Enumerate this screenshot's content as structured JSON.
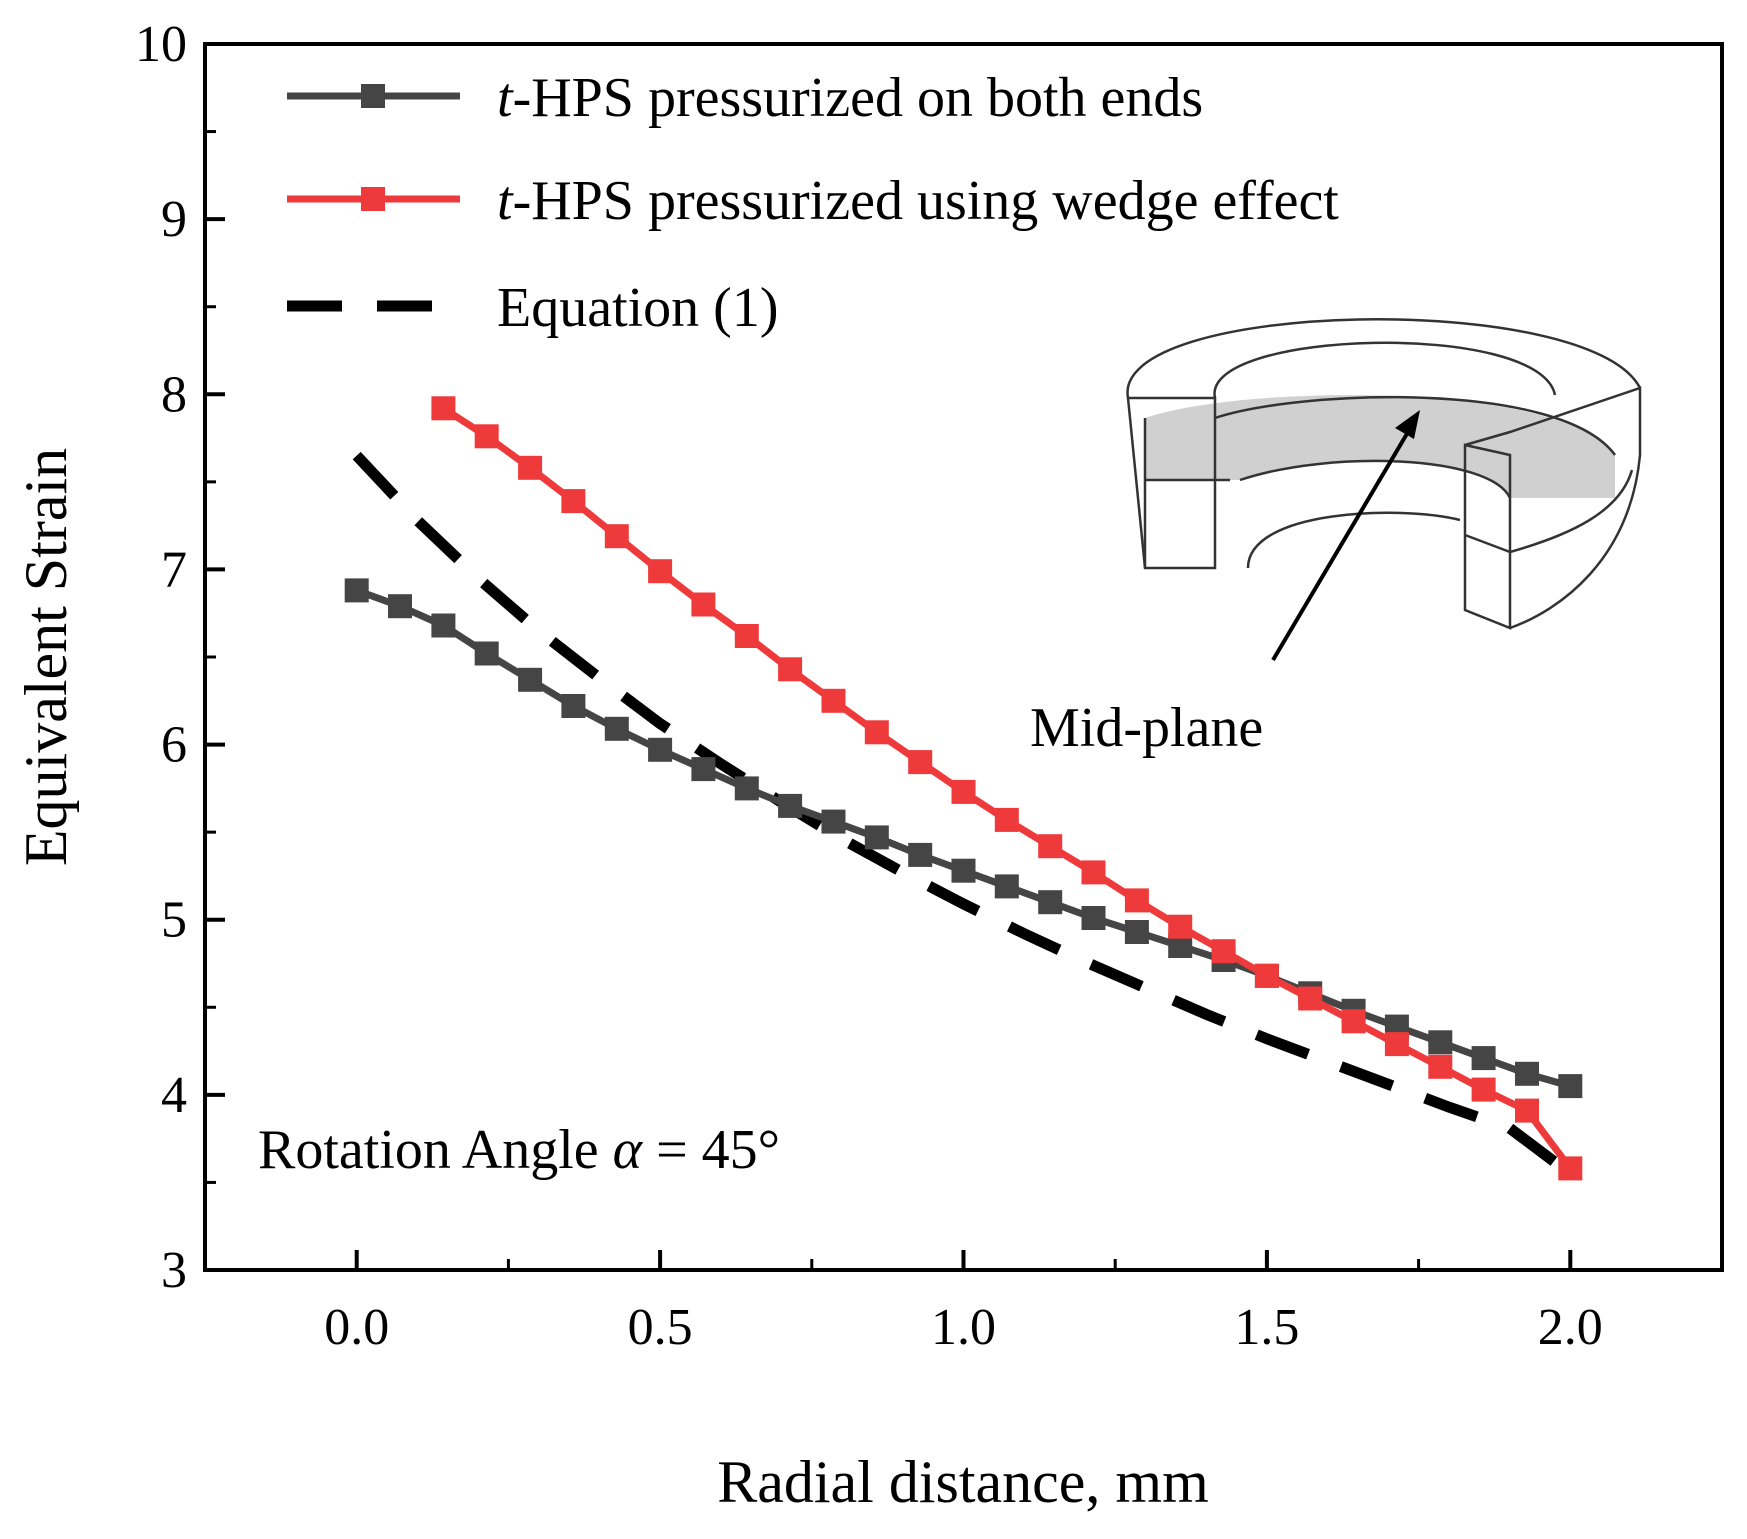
{
  "chart_data": {
    "type": "line",
    "xlabel": "Radial distance, mm",
    "ylabel": "Equivalent Strain",
    "xlim": [
      -0.25,
      2.25
    ],
    "ylim": [
      3,
      10
    ],
    "xticks": [
      0.0,
      0.5,
      1.0,
      1.5,
      2.0
    ],
    "xtick_labels": [
      "0.0",
      "0.5",
      "1.0",
      "1.5",
      "2.0"
    ],
    "yticks": [
      3,
      4,
      5,
      6,
      7,
      8,
      9,
      10
    ],
    "ytick_labels": [
      "3",
      "4",
      "5",
      "6",
      "7",
      "8",
      "9",
      "10"
    ],
    "legend_position": "top-left",
    "series": [
      {
        "name_italic": "t",
        "name_rest": "-HPS pressurized on both ends",
        "color": "#454545",
        "marker": "square",
        "x": [
          0.0,
          0.0714,
          0.1429,
          0.2143,
          0.2857,
          0.3571,
          0.4286,
          0.5,
          0.5714,
          0.6429,
          0.7143,
          0.7857,
          0.8571,
          0.9286,
          1.0,
          1.0714,
          1.1429,
          1.2143,
          1.2857,
          1.3571,
          1.4286,
          1.5,
          1.5714,
          1.6429,
          1.7143,
          1.7857,
          1.8571,
          1.9286,
          2.0
        ],
        "y": [
          6.88,
          6.79,
          6.68,
          6.52,
          6.37,
          6.22,
          6.09,
          5.97,
          5.86,
          5.75,
          5.65,
          5.56,
          5.47,
          5.37,
          5.28,
          5.19,
          5.1,
          5.01,
          4.93,
          4.85,
          4.77,
          4.68,
          4.58,
          4.48,
          4.39,
          4.3,
          4.21,
          4.12,
          4.05
        ]
      },
      {
        "name_italic": "t",
        "name_rest": "-HPS pressurized using wedge effect",
        "color": "#ee3a3a",
        "marker": "square",
        "x": [
          0.1429,
          0.2143,
          0.2857,
          0.3571,
          0.4286,
          0.5,
          0.5714,
          0.6429,
          0.7143,
          0.7857,
          0.8571,
          0.9286,
          1.0,
          1.0714,
          1.1429,
          1.2143,
          1.2857,
          1.3571,
          1.4286,
          1.5,
          1.5714,
          1.6429,
          1.7143,
          1.7857,
          1.8571,
          1.9286,
          2.0
        ],
        "y": [
          7.92,
          7.76,
          7.58,
          7.39,
          7.19,
          6.99,
          6.8,
          6.62,
          6.43,
          6.25,
          6.07,
          5.9,
          5.73,
          5.57,
          5.42,
          5.27,
          5.11,
          4.96,
          4.82,
          4.68,
          4.55,
          4.42,
          4.29,
          4.16,
          4.03,
          3.91,
          3.58
        ]
      },
      {
        "name": "Equation (1)",
        "color": "#000000",
        "style": "dashed",
        "x": [
          0.0,
          0.1,
          0.2,
          0.3,
          0.4,
          0.5,
          0.6,
          0.7,
          0.8,
          0.9,
          1.0,
          1.1,
          1.2,
          1.3,
          1.4,
          1.5,
          1.6,
          1.7,
          1.8,
          1.9,
          2.0
        ],
        "y": [
          7.65,
          7.28,
          6.95,
          6.65,
          6.38,
          6.12,
          5.89,
          5.67,
          5.46,
          5.27,
          5.09,
          4.92,
          4.76,
          4.61,
          4.46,
          4.32,
          4.19,
          4.06,
          3.93,
          3.81,
          3.55
        ]
      }
    ],
    "annotations": {
      "rotation_prefix": "Rotation Angle ",
      "rotation_alpha": "α",
      "rotation_suffix": " =  45°",
      "mid_plane": "Mid-plane"
    }
  }
}
